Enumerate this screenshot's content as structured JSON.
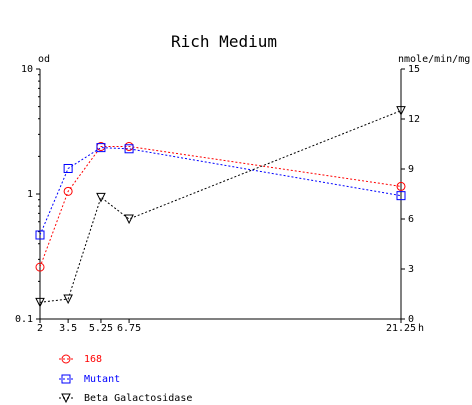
{
  "chart_data": {
    "type": "line",
    "title": "Rich Medium",
    "x": [
      2,
      3.5,
      5.25,
      6.75,
      21.25
    ],
    "x_tick_labels": [
      "2",
      "3.5",
      "5.25",
      "6.75",
      "21.25"
    ],
    "x_unit": "h",
    "xlim": [
      2,
      21.25
    ],
    "left_axis": {
      "label": "od",
      "scale": "log",
      "ylim": [
        0.1,
        10
      ],
      "ticks": [
        0.1,
        1,
        10
      ],
      "tick_labels": [
        "0.1",
        "1",
        "10"
      ]
    },
    "right_axis": {
      "label": "nmole/min/mg",
      "scale": "linear",
      "ylim": [
        0,
        15
      ],
      "ticks": [
        0,
        3,
        6,
        9,
        12,
        15
      ],
      "tick_labels": [
        "0",
        "3",
        "6",
        "9",
        "12",
        "15"
      ]
    },
    "series": [
      {
        "name": "168",
        "axis": "left",
        "color": "#ff0000",
        "marker": "circle",
        "values": [
          0.26,
          1.05,
          2.4,
          2.4,
          1.15
        ]
      },
      {
        "name": "Mutant",
        "axis": "left",
        "color": "#0000ff",
        "marker": "square",
        "values": [
          0.47,
          1.6,
          2.35,
          2.3,
          0.97
        ]
      },
      {
        "name": "Beta Galactosidase",
        "axis": "right",
        "color": "#000000",
        "marker": "triangle-down",
        "values": [
          1.0,
          1.2,
          7.3,
          6.0,
          12.5
        ]
      }
    ],
    "grid": false,
    "legend_position": "bottom-left"
  }
}
